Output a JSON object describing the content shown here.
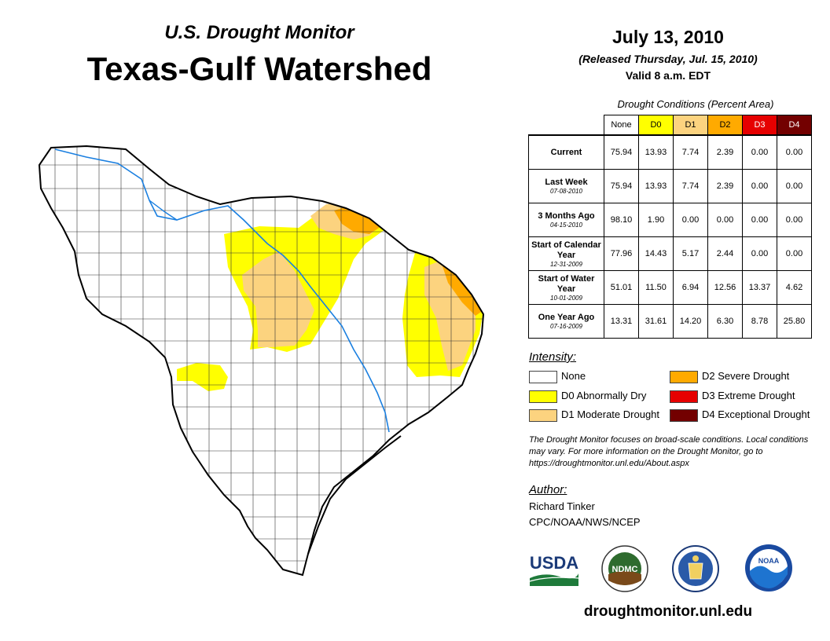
{
  "header": {
    "subtitle": "U.S. Drought Monitor",
    "title": "Texas-Gulf Watershed",
    "date": "July 13, 2010",
    "released": "(Released Thursday, Jul. 15, 2010)",
    "valid": "Valid 8 a.m. EDT"
  },
  "table": {
    "caption": "Drought Conditions (Percent Area)",
    "columns": [
      "None",
      "D0",
      "D1",
      "D2",
      "D3",
      "D4"
    ],
    "column_colors": [
      "#ffffff",
      "#ffff00",
      "#fcd37f",
      "#ffaa00",
      "#e60000",
      "#730000"
    ],
    "rows": [
      {
        "label": "Current",
        "sublabel": "",
        "values": [
          "75.94",
          "13.93",
          "7.74",
          "2.39",
          "0.00",
          "0.00"
        ]
      },
      {
        "label": "Last Week",
        "sublabel": "07-08-2010",
        "values": [
          "75.94",
          "13.93",
          "7.74",
          "2.39",
          "0.00",
          "0.00"
        ]
      },
      {
        "label": "3 Months Ago",
        "sublabel": "04-15-2010",
        "values": [
          "98.10",
          "1.90",
          "0.00",
          "0.00",
          "0.00",
          "0.00"
        ]
      },
      {
        "label": "Start of Calendar Year",
        "sublabel": "12-31-2009",
        "values": [
          "77.96",
          "14.43",
          "5.17",
          "2.44",
          "0.00",
          "0.00"
        ]
      },
      {
        "label": "Start of Water Year",
        "sublabel": "10-01-2009",
        "values": [
          "51.01",
          "11.50",
          "6.94",
          "12.56",
          "13.37",
          "4.62"
        ]
      },
      {
        "label": "One Year Ago",
        "sublabel": "07-16-2009",
        "values": [
          "13.31",
          "31.61",
          "14.20",
          "6.30",
          "8.78",
          "25.80"
        ]
      }
    ]
  },
  "legend": {
    "heading": "Intensity:",
    "items": [
      {
        "label": "None",
        "color": "#ffffff"
      },
      {
        "label": "D0 Abnormally Dry",
        "color": "#ffff00"
      },
      {
        "label": "D1 Moderate Drought",
        "color": "#fcd37f"
      },
      {
        "label": "D2 Severe Drought",
        "color": "#ffaa00"
      },
      {
        "label": "D3 Extreme Drought",
        "color": "#e60000"
      },
      {
        "label": "D4 Exceptional Drought",
        "color": "#730000"
      }
    ]
  },
  "note": "The Drought Monitor focuses on broad-scale conditions. Local conditions may vary. For more information on the Drought Monitor, go to https://droughtmonitor.unl.edu/About.aspx",
  "author": {
    "heading": "Author:",
    "name": "Richard Tinker",
    "org": "CPC/NOAA/NWS/NCEP"
  },
  "logos": {
    "usda": "USDA",
    "ndmc": "NDMC",
    "noaa": "NOAA"
  },
  "website": "droughtmonitor.unl.edu"
}
